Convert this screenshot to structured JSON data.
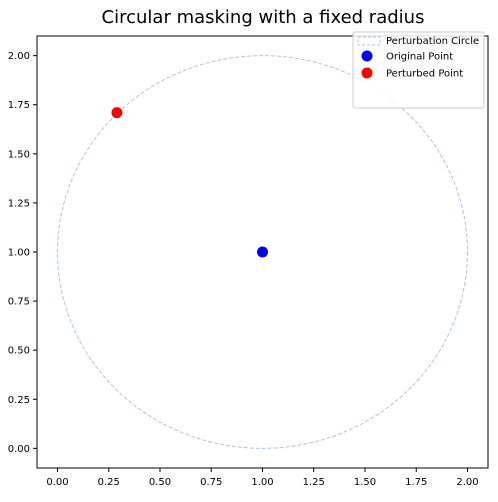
{
  "chart_data": {
    "type": "scatter",
    "title": "Circular masking with a fixed radius",
    "xlabel": "",
    "ylabel": "",
    "xlim": [
      -0.1,
      2.1
    ],
    "ylim": [
      -0.1,
      2.1
    ],
    "xticks": [
      0.0,
      0.25,
      0.5,
      0.75,
      1.0,
      1.25,
      1.5,
      1.75,
      2.0
    ],
    "yticks": [
      0.0,
      0.25,
      0.5,
      0.75,
      1.0,
      1.25,
      1.5,
      1.75,
      2.0
    ],
    "xtick_labels": [
      "0.00",
      "0.25",
      "0.50",
      "0.75",
      "1.00",
      "1.25",
      "1.50",
      "1.75",
      "2.00"
    ],
    "ytick_labels": [
      "0.00",
      "0.25",
      "0.50",
      "0.75",
      "1.00",
      "1.25",
      "1.50",
      "1.75",
      "2.00"
    ],
    "grid": false,
    "legend_position": "top-right",
    "circle": {
      "name": "Perturbation Circle",
      "center": [
        1.0,
        1.0
      ],
      "radius": 1.0,
      "color": "#b0c4de",
      "linestyle": "dashed"
    },
    "series": [
      {
        "name": "Original Point",
        "x": [
          1.0
        ],
        "y": [
          1.0
        ],
        "color": "#0000ff"
      },
      {
        "name": "Perturbed Point",
        "x": [
          0.29
        ],
        "y": [
          1.71
        ],
        "color": "#ff0000"
      }
    ]
  }
}
